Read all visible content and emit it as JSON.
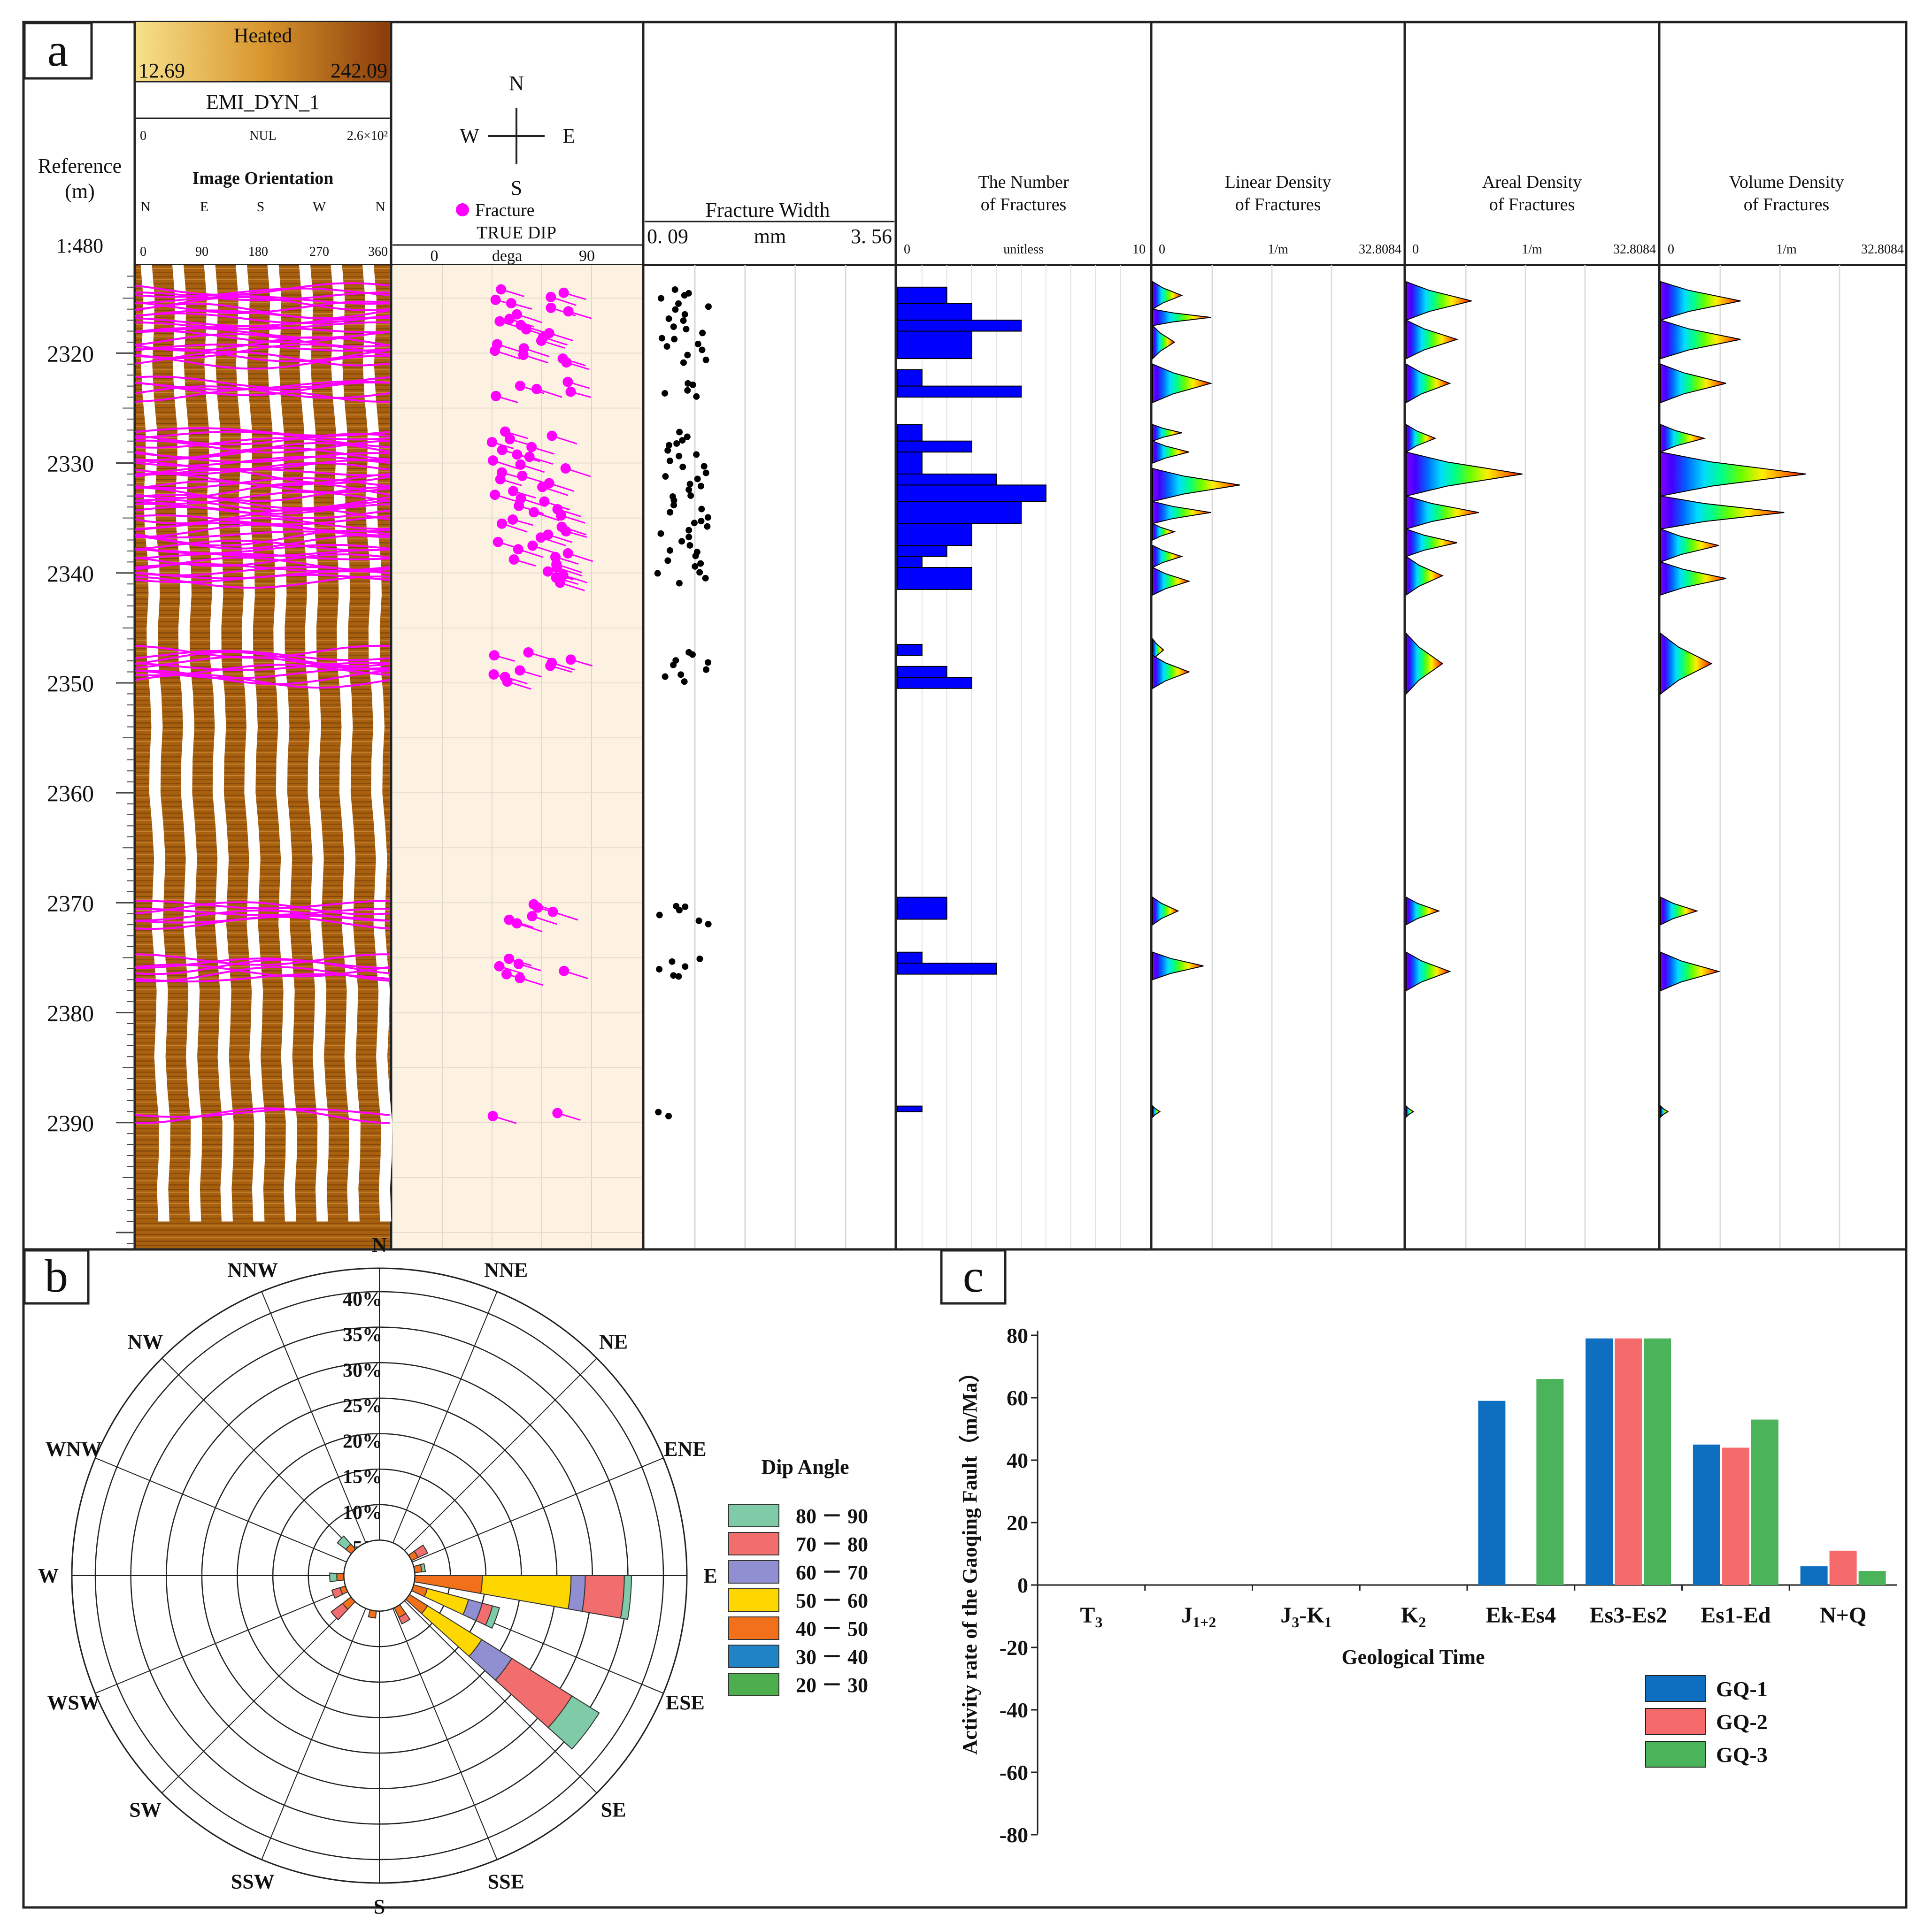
{
  "panel_labels": {
    "a": "a",
    "b": "b",
    "c": "c"
  },
  "track_headers": {
    "ref": {
      "title": "Reference",
      "unit": "(m)",
      "scale": "1:480"
    },
    "image": {
      "palette": "Heated",
      "min": "12.69",
      "max": "242.09",
      "name": "EMI_DYN_1",
      "range_min": "0",
      "range_mid": "NUL",
      "range_max": "2.6×10²",
      "orient_title": "Image Orientation",
      "dirs": [
        "N",
        "E",
        "S",
        "W",
        "N"
      ],
      "degs": [
        "0",
        "90",
        "180",
        "270",
        "360"
      ]
    },
    "dip": {
      "compass": [
        "N",
        "E",
        "S",
        "W"
      ],
      "legend": "Fracture",
      "title": "TRUE DIP",
      "min": "0",
      "unit": "dega",
      "max": "90"
    },
    "width": {
      "title": "Fracture Width",
      "min": "0. 09",
      "unit": "mm",
      "max": "3. 56"
    },
    "number": {
      "title1": "The Number",
      "title2": "of Fractures",
      "min": "0",
      "unit": "unitless",
      "max": "10"
    },
    "linear": {
      "title1": "Linear Density",
      "title2": "of Fractures",
      "min": "0",
      "unit": "1/m",
      "max": "32.8084"
    },
    "areal": {
      "title1": "Areal Density",
      "title2": "of Fractures",
      "min": "0",
      "unit": "1/m",
      "max": "32.8084"
    },
    "volume": {
      "title1": "Volume Density",
      "title2": "of Fractures",
      "min": "0",
      "unit": "1/m",
      "max": "32.8084"
    }
  },
  "depth_labels": [
    "2320",
    "2330",
    "2340",
    "2350",
    "2360",
    "2370",
    "2380",
    "2390"
  ],
  "colors": {
    "magenta": "#ff00ff",
    "count_fill": "#0000ff",
    "dip_bg": "#fdf2e2",
    "image_dark": "#a8600e",
    "image_light": "#e8a850"
  },
  "chart_data": [
    {
      "id": "fracture_log",
      "type": "well_log",
      "depth_range_m": [
        2312,
        2401
      ],
      "fracture_intervals": [
        [
          2314,
          2321
        ],
        [
          2322.5,
          2324
        ],
        [
          2327,
          2341
        ],
        [
          2347,
          2350
        ],
        [
          2370,
          2372
        ],
        [
          2375,
          2377
        ],
        [
          2389,
          2389.5
        ]
      ],
      "count_bins": [
        {
          "top": 2314,
          "bottom": 2315.5,
          "n": 2
        },
        {
          "top": 2315.5,
          "bottom": 2317,
          "n": 3
        },
        {
          "top": 2317,
          "bottom": 2318,
          "n": 5
        },
        {
          "top": 2318,
          "bottom": 2320.5,
          "n": 3
        },
        {
          "top": 2321.5,
          "bottom": 2323,
          "n": 1
        },
        {
          "top": 2323,
          "bottom": 2324,
          "n": 5
        },
        {
          "top": 2326.5,
          "bottom": 2328,
          "n": 1
        },
        {
          "top": 2328,
          "bottom": 2329,
          "n": 3
        },
        {
          "top": 2329,
          "bottom": 2331,
          "n": 1
        },
        {
          "top": 2331,
          "bottom": 2332,
          "n": 4
        },
        {
          "top": 2332,
          "bottom": 2333.5,
          "n": 6
        },
        {
          "top": 2333.5,
          "bottom": 2335.5,
          "n": 5
        },
        {
          "top": 2335.5,
          "bottom": 2337.5,
          "n": 3
        },
        {
          "top": 2337.5,
          "bottom": 2338.5,
          "n": 2
        },
        {
          "top": 2338.5,
          "bottom": 2339.5,
          "n": 1
        },
        {
          "top": 2339.5,
          "bottom": 2341.5,
          "n": 3
        },
        {
          "top": 2346.5,
          "bottom": 2347.5,
          "n": 1
        },
        {
          "top": 2348.5,
          "bottom": 2349.5,
          "n": 2
        },
        {
          "top": 2349.5,
          "bottom": 2350.5,
          "n": 3
        },
        {
          "top": 2369.5,
          "bottom": 2371.5,
          "n": 2
        },
        {
          "top": 2374.5,
          "bottom": 2375.5,
          "n": 1
        },
        {
          "top": 2375.5,
          "bottom": 2376.5,
          "n": 4
        },
        {
          "top": 2388.5,
          "bottom": 2389,
          "n": 1
        }
      ],
      "density_peaks": {
        "linear": [
          [
            2313.5,
            2316,
            4
          ],
          [
            2316,
            2317.5,
            8
          ],
          [
            2317.5,
            2320.5,
            3
          ],
          [
            2321,
            2324.5,
            8
          ],
          [
            2326.5,
            2328,
            4
          ],
          [
            2328,
            2330,
            5
          ],
          [
            2330.5,
            2333.5,
            12
          ],
          [
            2333.5,
            2335.5,
            8
          ],
          [
            2335.5,
            2337,
            3
          ],
          [
            2337.5,
            2339.5,
            4
          ],
          [
            2339.5,
            2342,
            5
          ],
          [
            2346,
            2348,
            1.5
          ],
          [
            2347.5,
            2350.5,
            5
          ],
          [
            2369.5,
            2372,
            3.5
          ],
          [
            2374.5,
            2377,
            7
          ],
          [
            2388.5,
            2389.5,
            1
          ]
        ],
        "areal": [
          [
            2313.5,
            2317,
            9
          ],
          [
            2317,
            2320.5,
            7
          ],
          [
            2321,
            2324.5,
            6
          ],
          [
            2326.5,
            2329,
            4
          ],
          [
            2329,
            2333,
            16
          ],
          [
            2333,
            2336,
            10
          ],
          [
            2336,
            2338.5,
            7
          ],
          [
            2338.5,
            2342,
            5
          ],
          [
            2345.5,
            2351,
            5
          ],
          [
            2369.5,
            2372,
            4.5
          ],
          [
            2374.5,
            2378,
            6
          ],
          [
            2388.5,
            2389.5,
            1
          ]
        ],
        "volume": [
          [
            2313.5,
            2317,
            11
          ],
          [
            2317,
            2320.5,
            11
          ],
          [
            2321,
            2324.5,
            9
          ],
          [
            2326.5,
            2329,
            6
          ],
          [
            2329,
            2333,
            20
          ],
          [
            2333,
            2336,
            17
          ],
          [
            2336,
            2339,
            8
          ],
          [
            2339,
            2342,
            9
          ],
          [
            2345.5,
            2351,
            7
          ],
          [
            2369.5,
            2372,
            5
          ],
          [
            2374.5,
            2378,
            8
          ],
          [
            2388.5,
            2389.5,
            1
          ]
        ]
      }
    },
    {
      "id": "rose_diagram",
      "type": "rose",
      "radial_max_percent": 40,
      "radial_ticks": [
        "5%",
        "10%",
        "15%",
        "20%",
        "25%",
        "30%",
        "35%",
        "40%"
      ],
      "directions": [
        "N",
        "NNE",
        "NE",
        "ENE",
        "E",
        "ESE",
        "SE",
        "SSE",
        "S",
        "SSW",
        "SW",
        "WSW",
        "W",
        "WNW",
        "NW",
        "NNW"
      ],
      "legend_title": "Dip Angle",
      "classes": [
        {
          "label": "80 － 90",
          "color": "#7fcba8"
        },
        {
          "label": "70 － 80",
          "color": "#f26d6d"
        },
        {
          "label": "60 － 70",
          "color": "#8f8fd1"
        },
        {
          "label": "50 － 60",
          "color": "#ffd700"
        },
        {
          "label": "40 － 50",
          "color": "#f3701a"
        },
        {
          "label": "30 － 40",
          "color": "#1f83c5"
        },
        {
          "label": "20 － 30",
          "color": "#4cae4c"
        }
      ],
      "petals": [
        {
          "azimuth": 95,
          "segments": [
            {
              "cls": "40 － 50",
              "from": 5,
              "to": 14.5
            },
            {
              "cls": "50 － 60",
              "from": 14.5,
              "to": 27
            },
            {
              "cls": "60 － 70",
              "from": 27,
              "to": 29
            },
            {
              "cls": "70 － 80",
              "from": 29,
              "to": 34.5
            },
            {
              "cls": "80 － 90",
              "from": 34.5,
              "to": 35.5
            }
          ]
        },
        {
          "azimuth": 127,
          "segments": [
            {
              "cls": "40 － 50",
              "from": 5,
              "to": 8
            },
            {
              "cls": "50 － 60",
              "from": 8,
              "to": 17
            },
            {
              "cls": "60 － 70",
              "from": 17,
              "to": 22
            },
            {
              "cls": "70 － 80",
              "from": 22,
              "to": 32
            },
            {
              "cls": "80 － 90",
              "from": 32,
              "to": 36.5
            }
          ]
        },
        {
          "azimuth": 110,
          "segments": [
            {
              "cls": "40 － 50",
              "from": 5,
              "to": 7
            },
            {
              "cls": "50 － 60",
              "from": 7,
              "to": 13
            },
            {
              "cls": "60 － 70",
              "from": 13,
              "to": 15
            },
            {
              "cls": "70 － 80",
              "from": 15,
              "to": 16.5
            },
            {
              "cls": "80 － 90",
              "from": 16.5,
              "to": 17.5
            }
          ]
        },
        {
          "azimuth": 60,
          "segments": [
            {
              "cls": "40 － 50",
              "from": 5,
              "to": 6
            },
            {
              "cls": "70 － 80",
              "from": 6,
              "to": 7.5
            }
          ]
        },
        {
          "azimuth": 80,
          "segments": [
            {
              "cls": "40 － 50",
              "from": 5,
              "to": 6
            },
            {
              "cls": "80 － 90",
              "from": 6,
              "to": 6.5
            }
          ]
        },
        {
          "azimuth": 150,
          "segments": [
            {
              "cls": "40 － 50",
              "from": 5,
              "to": 6.5
            },
            {
              "cls": "70 － 80",
              "from": 6.5,
              "to": 7.5
            }
          ]
        },
        {
          "azimuth": 190,
          "segments": [
            {
              "cls": "40 － 50",
              "from": 5,
              "to": 6
            }
          ]
        },
        {
          "azimuth": 228,
          "segments": [
            {
              "cls": "40 － 50",
              "from": 5,
              "to": 6.5
            },
            {
              "cls": "70 － 80",
              "from": 6.5,
              "to": 8.5
            }
          ]
        },
        {
          "azimuth": 248,
          "segments": [
            {
              "cls": "40 － 50",
              "from": 5,
              "to": 5.8
            },
            {
              "cls": "70 － 80",
              "from": 5.8,
              "to": 7
            }
          ]
        },
        {
          "azimuth": 268,
          "segments": [
            {
              "cls": "40 － 50",
              "from": 5,
              "to": 6
            },
            {
              "cls": "80 － 90",
              "from": 6,
              "to": 7
            }
          ]
        },
        {
          "azimuth": 313,
          "segments": [
            {
              "cls": "40 － 50",
              "from": 5,
              "to": 6
            },
            {
              "cls": "80 － 90",
              "from": 6,
              "to": 7.5
            }
          ]
        }
      ]
    },
    {
      "id": "fault_activity",
      "type": "bar",
      "categories": [
        "T3",
        "J1+2",
        "J3-K1",
        "K2",
        "Ek-Es4",
        "Es3-Es2",
        "Es1-Ed",
        "N+Q"
      ],
      "category_labels": [
        {
          "base": "T",
          "sub": "3",
          "tail": ""
        },
        {
          "base": "J",
          "sub": "1+2",
          "tail": ""
        },
        {
          "base": "J",
          "sub": "3",
          "tail": "-K",
          "sub2": "1"
        },
        {
          "base": "K",
          "sub": "2",
          "tail": ""
        },
        {
          "base": "Ek-Es4",
          "sub": "",
          "tail": ""
        },
        {
          "base": "Es3-Es2",
          "sub": "",
          "tail": ""
        },
        {
          "base": "Es1-Ed",
          "sub": "",
          "tail": ""
        },
        {
          "base": "N+Q",
          "sub": "",
          "tail": ""
        }
      ],
      "series": [
        {
          "name": "GQ-1",
          "color": "#0e6fc1",
          "values": [
            0,
            0,
            0,
            0,
            59,
            79,
            45,
            6
          ]
        },
        {
          "name": "GQ-2",
          "color": "#f56a6a",
          "values": [
            0,
            0,
            0,
            0,
            0,
            79,
            44,
            11
          ]
        },
        {
          "name": "GQ-3",
          "color": "#4bb45a",
          "values": [
            0,
            0,
            0,
            0,
            66,
            79,
            53,
            4.5
          ]
        }
      ],
      "xlabel": "Geological Time",
      "ylabel": "Activity rate of the Gaoqing Fault（m/Ma）",
      "ylim": [
        -80,
        80
      ],
      "yticks": [
        -80,
        -60,
        -40,
        -20,
        0,
        20,
        40,
        60,
        80
      ]
    }
  ]
}
